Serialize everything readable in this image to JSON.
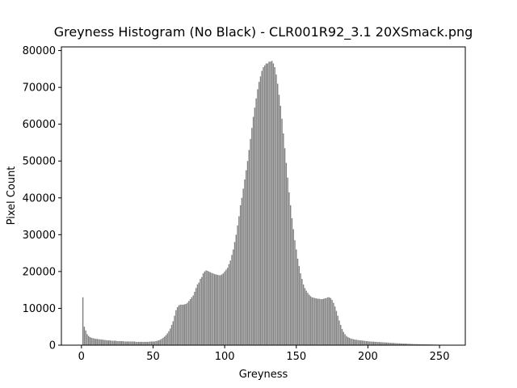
{
  "chart_data": {
    "type": "bar",
    "title": "Greyness Histogram (No Black) - CLR001R92_3.1 20XSmack.png",
    "xlabel": "Greyness",
    "ylabel": "Pixel Count",
    "color": "#808080",
    "x": [
      1,
      2,
      3,
      4,
      5,
      6,
      7,
      8,
      9,
      10,
      11,
      12,
      13,
      14,
      15,
      16,
      17,
      18,
      19,
      20,
      21,
      22,
      23,
      24,
      25,
      26,
      27,
      28,
      29,
      30,
      31,
      32,
      33,
      34,
      35,
      36,
      37,
      38,
      39,
      40,
      41,
      42,
      43,
      44,
      45,
      46,
      47,
      48,
      49,
      50,
      51,
      52,
      53,
      54,
      55,
      56,
      57,
      58,
      59,
      60,
      61,
      62,
      63,
      64,
      65,
      66,
      67,
      68,
      69,
      70,
      71,
      72,
      73,
      74,
      75,
      76,
      77,
      78,
      79,
      80,
      81,
      82,
      83,
      84,
      85,
      86,
      87,
      88,
      89,
      90,
      91,
      92,
      93,
      94,
      95,
      96,
      97,
      98,
      99,
      100,
      101,
      102,
      103,
      104,
      105,
      106,
      107,
      108,
      109,
      110,
      111,
      112,
      113,
      114,
      115,
      116,
      117,
      118,
      119,
      120,
      121,
      122,
      123,
      124,
      125,
      126,
      127,
      128,
      129,
      130,
      131,
      132,
      133,
      134,
      135,
      136,
      137,
      138,
      139,
      140,
      141,
      142,
      143,
      144,
      145,
      146,
      147,
      148,
      149,
      150,
      151,
      152,
      153,
      154,
      155,
      156,
      157,
      158,
      159,
      160,
      161,
      162,
      163,
      164,
      165,
      166,
      167,
      168,
      169,
      170,
      171,
      172,
      173,
      174,
      175,
      176,
      177,
      178,
      179,
      180,
      181,
      182,
      183,
      184,
      185,
      186,
      187,
      188,
      189,
      190,
      191,
      192,
      193,
      194,
      195,
      196,
      197,
      198,
      199,
      200,
      201,
      202,
      203,
      204,
      205,
      206,
      207,
      208,
      209,
      210,
      211,
      212,
      213,
      214,
      215,
      216,
      217,
      218,
      219,
      220,
      221,
      222,
      223,
      224,
      225,
      226,
      227,
      228,
      229,
      230,
      231,
      232,
      233,
      234,
      235,
      236,
      237,
      238,
      239,
      240,
      241,
      242,
      243,
      244,
      245,
      246,
      247,
      248,
      249,
      250,
      251,
      252,
      253,
      254,
      255
    ],
    "values": [
      13000,
      5000,
      4000,
      3000,
      2500,
      2200,
      2000,
      1900,
      1800,
      1700,
      1700,
      1600,
      1600,
      1500,
      1500,
      1400,
      1400,
      1300,
      1300,
      1300,
      1200,
      1200,
      1200,
      1200,
      1100,
      1100,
      1100,
      1100,
      1100,
      1000,
      1000,
      1000,
      1000,
      1000,
      1000,
      1000,
      1000,
      900,
      900,
      900,
      900,
      900,
      900,
      900,
      900,
      900,
      900,
      1000,
      1000,
      1000,
      1000,
      1100,
      1200,
      1300,
      1500,
      1700,
      2000,
      2300,
      2700,
      3200,
      3800,
      4500,
      5500,
      6500,
      8000,
      9500,
      10300,
      10800,
      11000,
      11000,
      11000,
      11100,
      11200,
      11500,
      12000,
      12500,
      13000,
      13500,
      14500,
      15500,
      16500,
      17000,
      18000,
      18500,
      19500,
      20000,
      20300,
      20200,
      20000,
      19800,
      19600,
      19500,
      19300,
      19200,
      19100,
      19000,
      19000,
      19200,
      19500,
      20000,
      20500,
      21000,
      22000,
      23000,
      24500,
      26000,
      28000,
      30000,
      32500,
      35000,
      38000,
      40000,
      42500,
      45000,
      47500,
      50000,
      53000,
      56000,
      59000,
      62000,
      64500,
      67000,
      69500,
      71500,
      73000,
      74500,
      75500,
      76000,
      76500,
      76500,
      77000,
      77000,
      77200,
      76500,
      75500,
      73500,
      71000,
      68000,
      65000,
      61500,
      57500,
      53500,
      49500,
      45500,
      41500,
      38000,
      34500,
      31500,
      28500,
      26000,
      23500,
      21500,
      19500,
      18000,
      16500,
      15500,
      14800,
      14200,
      13700,
      13300,
      13000,
      12900,
      12800,
      12700,
      12600,
      12600,
      12500,
      12500,
      12600,
      12700,
      12800,
      13000,
      13000,
      12800,
      12300,
      11500,
      10500,
      9300,
      8000,
      6700,
      5500,
      4400,
      3600,
      3000,
      2500,
      2200,
      2000,
      1800,
      1700,
      1600,
      1500,
      1450,
      1400,
      1350,
      1300,
      1250,
      1200,
      1150,
      1100,
      1050,
      1000,
      1000,
      950,
      950,
      900,
      900,
      850,
      850,
      800,
      800,
      750,
      750,
      700,
      700,
      650,
      650,
      600,
      600,
      550,
      550,
      500,
      500,
      480,
      460,
      440,
      420,
      400,
      380,
      360,
      340,
      320,
      300,
      290,
      280,
      270,
      260,
      250,
      240,
      230,
      220,
      210,
      200,
      190,
      180,
      170,
      160,
      150,
      140,
      130,
      120,
      110,
      100,
      90,
      80,
      70
    ],
    "xlim": [
      -14,
      268
    ],
    "xticks": [
      0,
      50,
      100,
      150,
      200,
      250
    ],
    "ylim": [
      0,
      81000
    ],
    "yticks": [
      0,
      10000,
      20000,
      30000,
      40000,
      50000,
      60000,
      70000,
      80000
    ],
    "bar_width": 0.8
  }
}
